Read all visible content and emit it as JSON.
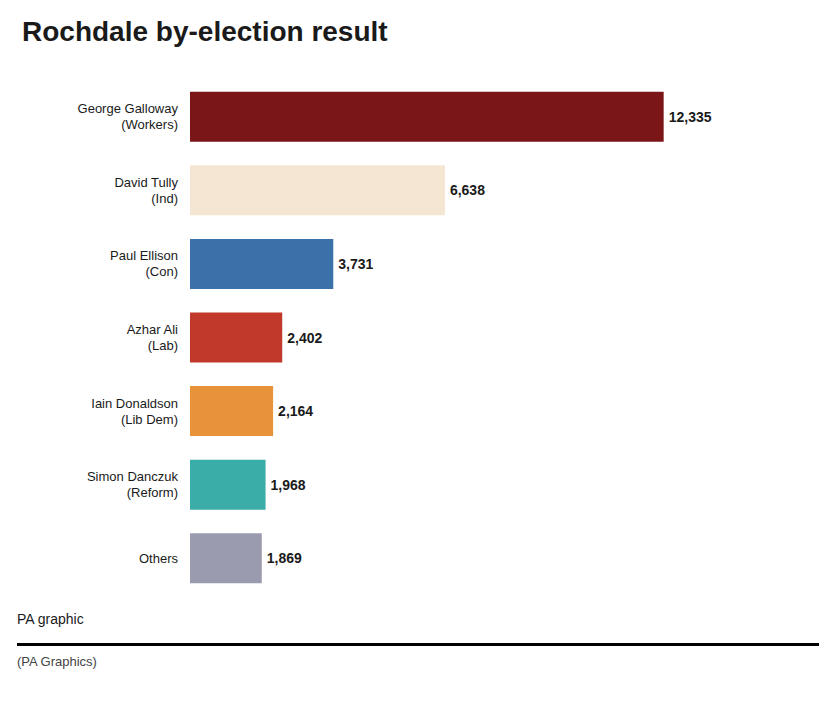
{
  "chart_data": {
    "type": "bar",
    "title": "Rochdale by-election result",
    "orientation": "horizontal",
    "categories": [
      "George Galloway\n(Workers)",
      "David Tully\n(Ind)",
      "Paul Ellison\n(Con)",
      "Azhar Ali\n(Lab)",
      "Iain Donaldson\n(Lib Dem)",
      "Simon Danczuk\n(Reform)",
      "Others"
    ],
    "values": [
      12335,
      6638,
      3731,
      2402,
      2164,
      1968,
      1869
    ],
    "value_labels": [
      "12,335",
      "6,638",
      "3,731",
      "2,402",
      "2,164",
      "1,968",
      "1,869"
    ],
    "colors": [
      "#7B1618",
      "#F5E6D3",
      "#3A71A8",
      "#C0392B",
      "#E8923A",
      "#3AADA8",
      "#9B9BB0"
    ],
    "xlim": [
      0,
      15000
    ],
    "data_labels": true,
    "tick_labels": "y",
    "grid": false,
    "annotations": [
      "PA graphic",
      "(PA Graphics)"
    ]
  }
}
